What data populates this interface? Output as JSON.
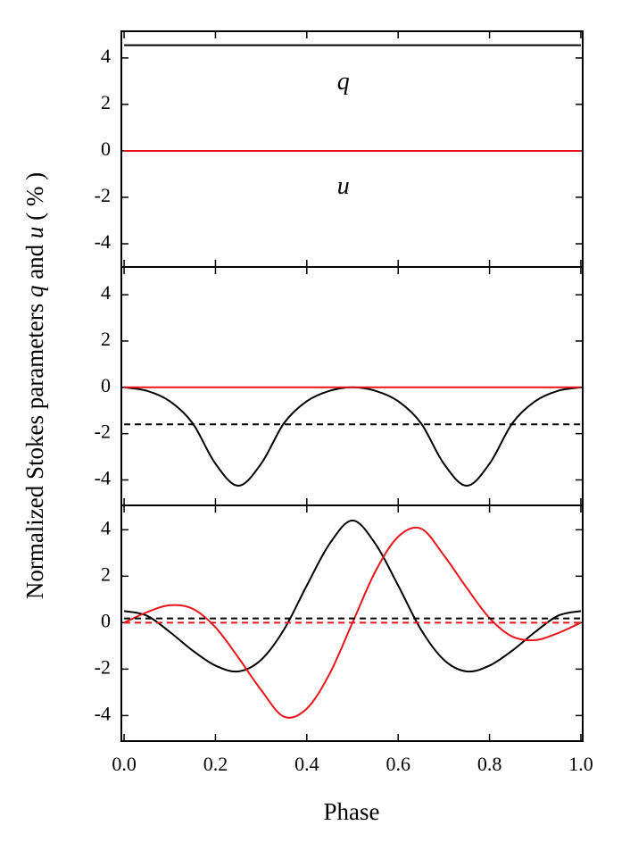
{
  "figure": {
    "xlabel": "Phase",
    "ylabel": [
      "Normalized Stokes parameters ",
      "q",
      " and ",
      "u",
      " ( % )"
    ]
  },
  "chart_data": [
    {
      "type": "line",
      "xlim": [
        -0.006,
        1.004
      ],
      "ylim": [
        -5,
        5.15
      ],
      "xticks": [
        0,
        0.2,
        0.4,
        0.6,
        0.8,
        1
      ],
      "show_xtick_labels": false,
      "yticks": [
        -4,
        -2,
        0,
        2,
        4
      ],
      "annotations": [
        {
          "text": "q",
          "x": 0.48,
          "y": 2.9
        },
        {
          "text": "u",
          "x": 0.48,
          "y": -1.6
        }
      ],
      "series": [
        {
          "color": "#000000",
          "dashed": false,
          "x": [
            0,
            1
          ],
          "values": [
            4.55,
            4.55
          ]
        },
        {
          "color": "#e8141a",
          "dashed": false,
          "x": [
            0,
            1
          ],
          "values": [
            0,
            0
          ]
        }
      ]
    },
    {
      "type": "line",
      "xlim": [
        -0.006,
        1.004
      ],
      "ylim": [
        -5.1,
        5.2
      ],
      "xticks": [
        0,
        0.2,
        0.4,
        0.6,
        0.8,
        1
      ],
      "show_xtick_labels": false,
      "yticks": [
        -4,
        -2,
        0,
        2,
        4
      ],
      "series": [
        {
          "color": "#000000",
          "dashed": false,
          "x": [
            0,
            0.05,
            0.1,
            0.15,
            0.2,
            0.25,
            0.3,
            0.35,
            0.4,
            0.45,
            0.5,
            0.55,
            0.6,
            0.65,
            0.7,
            0.75,
            0.8,
            0.85,
            0.9,
            0.95,
            1
          ],
          "values": [
            0,
            -0.15,
            -0.6,
            -1.55,
            -3.3,
            -4.25,
            -3.3,
            -1.55,
            -0.6,
            -0.15,
            0,
            -0.15,
            -0.6,
            -1.55,
            -3.3,
            -4.25,
            -3.3,
            -1.55,
            -0.6,
            -0.15,
            0
          ]
        },
        {
          "color": "#000000",
          "dashed": true,
          "x": [
            0,
            1
          ],
          "values": [
            -1.6,
            -1.6
          ]
        },
        {
          "color": "#e8141a",
          "dashed": false,
          "x": [
            0,
            1
          ],
          "values": [
            0,
            0
          ]
        }
      ]
    },
    {
      "type": "line",
      "xlim": [
        -0.006,
        1.004
      ],
      "ylim": [
        -5.1,
        5.05
      ],
      "xticks": [
        {
          "value": 0,
          "label": "0.0"
        },
        0.2,
        0.4,
        0.6,
        0.8,
        {
          "value": 1,
          "label": "1.0"
        }
      ],
      "show_xtick_labels": true,
      "yticks": [
        -4,
        -2,
        0,
        2,
        4
      ],
      "series": [
        {
          "color": "#000000",
          "dashed": false,
          "x": [
            0,
            0.05,
            0.1,
            0.15,
            0.2,
            0.25,
            0.3,
            0.35,
            0.4,
            0.45,
            0.5,
            0.55,
            0.6,
            0.65,
            0.7,
            0.75,
            0.8,
            0.85,
            0.9,
            0.95,
            1
          ],
          "values": [
            0.5,
            0.3,
            -0.4,
            -1.2,
            -1.85,
            -2.1,
            -1.6,
            -0.3,
            1.6,
            3.4,
            4.4,
            3.4,
            1.6,
            -0.3,
            -1.6,
            -2.1,
            -1.85,
            -1.2,
            -0.4,
            0.3,
            0.5
          ]
        },
        {
          "color": "#e8141a",
          "dashed": false,
          "x": [
            0,
            0.05,
            0.1,
            0.15,
            0.2,
            0.25,
            0.3,
            0.35,
            0.4,
            0.45,
            0.5,
            0.55,
            0.6,
            0.65,
            0.7,
            0.75,
            0.8,
            0.85,
            0.9,
            0.95,
            1
          ],
          "values": [
            0,
            0.45,
            0.75,
            0.6,
            -0.2,
            -1.5,
            -2.9,
            -4.05,
            -3.7,
            -2.2,
            0,
            2.2,
            3.7,
            4.05,
            2.9,
            1.5,
            0.2,
            -0.6,
            -0.75,
            -0.45,
            0
          ]
        },
        {
          "color": "#000000",
          "dashed": true,
          "x": [
            0,
            1
          ],
          "values": [
            0.18,
            0.18
          ]
        },
        {
          "color": "#e8141a",
          "dashed": true,
          "x": [
            0,
            1
          ],
          "values": [
            0,
            0
          ]
        }
      ]
    }
  ]
}
